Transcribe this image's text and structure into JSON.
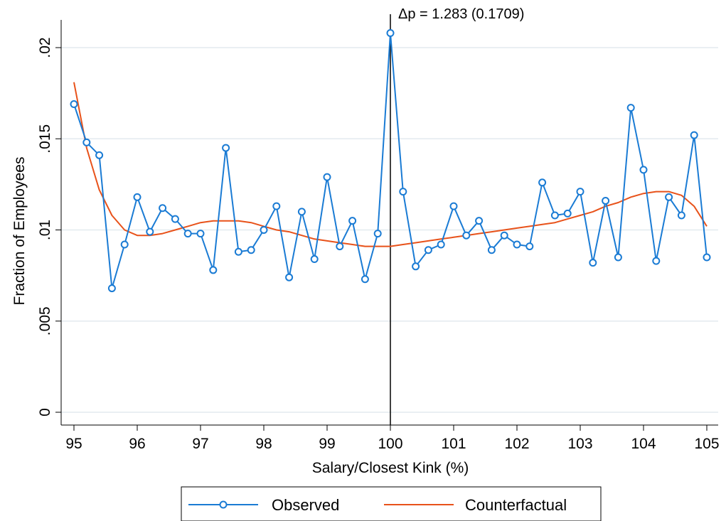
{
  "chart_data": {
    "type": "line",
    "xlabel": "Salary/Closest Kink (%)",
    "ylabel": "Fraction of Employees",
    "xlim": [
      95,
      105
    ],
    "ylim": [
      0,
      0.021
    ],
    "x_ticks": [
      95,
      96,
      97,
      98,
      99,
      100,
      101,
      102,
      103,
      104,
      105
    ],
    "x_tick_labels": [
      "95",
      "96",
      "97",
      "98",
      "99",
      "100",
      "101",
      "102",
      "103",
      "104",
      "105"
    ],
    "y_ticks": [
      0,
      0.005,
      0.01,
      0.015,
      0.02
    ],
    "y_tick_labels": [
      "0",
      ".005",
      ".01",
      ".015",
      ".02"
    ],
    "grid": "horizontal",
    "legend_position": "bottom",
    "annotation": {
      "text": "Δp = 1.283 (0.1709)",
      "x": 100
    },
    "vertical_line_x": 100,
    "series": [
      {
        "name": "Observed",
        "type": "line-marker",
        "color": "#1a7bd4",
        "x": [
          95,
          95.2,
          95.4,
          95.6,
          95.8,
          96,
          96.2,
          96.4,
          96.6,
          96.8,
          97,
          97.2,
          97.4,
          97.6,
          97.8,
          98,
          98.2,
          98.4,
          98.6,
          98.8,
          99,
          99.2,
          99.4,
          99.6,
          99.8,
          100,
          100.2,
          100.4,
          100.6,
          100.8,
          101,
          101.2,
          101.4,
          101.6,
          101.8,
          102,
          102.2,
          102.4,
          102.6,
          102.8,
          103,
          103.2,
          103.4,
          103.6,
          103.8,
          104,
          104.2,
          104.4,
          104.6,
          104.8,
          105
        ],
        "values": [
          0.0169,
          0.0148,
          0.0141,
          0.0068,
          0.0092,
          0.0118,
          0.0099,
          0.0112,
          0.0106,
          0.0098,
          0.0098,
          0.0078,
          0.0145,
          0.0088,
          0.0089,
          0.01,
          0.0113,
          0.0074,
          0.011,
          0.0084,
          0.0129,
          0.0091,
          0.0105,
          0.0073,
          0.0098,
          0.0208,
          0.0121,
          0.008,
          0.0089,
          0.0092,
          0.0113,
          0.0097,
          0.0105,
          0.0089,
          0.0097,
          0.0092,
          0.0091,
          0.0126,
          0.0108,
          0.0109,
          0.0121,
          0.0082,
          0.0116,
          0.0085,
          0.0167,
          0.0133,
          0.0083,
          0.0118,
          0.0108,
          0.0152,
          0.0085
        ]
      },
      {
        "name": "Counterfactual",
        "type": "line",
        "color": "#e8521a",
        "x": [
          95,
          95.2,
          95.4,
          95.6,
          95.8,
          96,
          96.2,
          96.4,
          96.6,
          96.8,
          97,
          97.2,
          97.4,
          97.6,
          97.8,
          98,
          98.2,
          98.4,
          98.6,
          98.8,
          99,
          99.2,
          99.4,
          99.6,
          99.8,
          100,
          100.2,
          100.4,
          100.6,
          100.8,
          101,
          101.2,
          101.4,
          101.6,
          101.8,
          102,
          102.2,
          102.4,
          102.6,
          102.8,
          103,
          103.2,
          103.4,
          103.6,
          103.8,
          104,
          104.2,
          104.4,
          104.6,
          104.8,
          105
        ],
        "values": [
          0.0181,
          0.0145,
          0.0122,
          0.0108,
          0.01,
          0.0097,
          0.0097,
          0.0098,
          0.01,
          0.0102,
          0.0104,
          0.0105,
          0.0105,
          0.0105,
          0.0104,
          0.0102,
          0.01,
          0.0099,
          0.0097,
          0.0095,
          0.0094,
          0.0093,
          0.0092,
          0.0091,
          0.0091,
          0.0091,
          0.0092,
          0.0093,
          0.0094,
          0.0095,
          0.0096,
          0.0097,
          0.0098,
          0.0099,
          0.01,
          0.0101,
          0.0102,
          0.0103,
          0.0104,
          0.0106,
          0.0108,
          0.011,
          0.0113,
          0.0115,
          0.0118,
          0.012,
          0.0121,
          0.0121,
          0.0119,
          0.0113,
          0.0102
        ]
      }
    ]
  }
}
